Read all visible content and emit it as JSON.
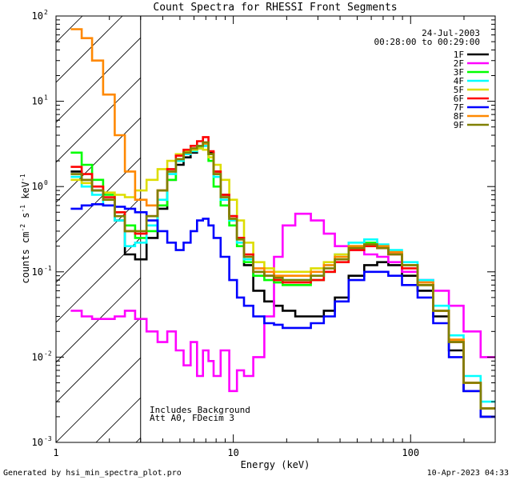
{
  "chart_data": {
    "type": "line",
    "title": "Count Spectra for RHESSI Front Segments",
    "xlabel": "Energy (keV)",
    "ylabel": "counts cm^-2 s^-1 keV^-1",
    "xscale": "log",
    "yscale": "log",
    "xlim": [
      1,
      300
    ],
    "ylim": [
      0.001,
      100
    ],
    "x_ticks": [
      {
        "value": 1,
        "label": "1"
      },
      {
        "value": 10,
        "label": "10"
      },
      {
        "value": 100,
        "label": "100"
      }
    ],
    "y_ticks": [
      {
        "value": 0.001,
        "base": "10",
        "exp": "-3"
      },
      {
        "value": 0.01,
        "base": "10",
        "exp": "-2"
      },
      {
        "value": 0.1,
        "base": "10",
        "exp": "-1"
      },
      {
        "value": 1,
        "base": "10",
        "exp": "0"
      },
      {
        "value": 10,
        "base": "10",
        "exp": "1"
      },
      {
        "value": 100,
        "base": "10",
        "exp": "2"
      }
    ],
    "shaded_region": {
      "x_from": 1,
      "x_to": 3
    },
    "date": "24-Jul-2003",
    "time_range": "00:28:00 to 00:29:00",
    "annotation_lines": [
      "Includes Background",
      "Att A0, FDecim 3"
    ],
    "series": [
      {
        "name": "1F",
        "color": "#000000",
        "x": [
          1.3,
          1.5,
          1.7,
          2.0,
          2.3,
          2.6,
          3.0,
          3.5,
          4.0,
          4.5,
          5.0,
          5.5,
          6.0,
          6.5,
          7.0,
          7.5,
          8.0,
          9.0,
          10.0,
          11.0,
          12.0,
          14.0,
          16.0,
          18.0,
          20.0,
          25.0,
          30.0,
          35.0,
          40.0,
          50.0,
          60.0,
          70.0,
          80.0,
          100.0,
          120.0,
          150.0,
          180.0,
          220.0,
          280.0
        ],
        "y": [
          1.5,
          1.2,
          0.9,
          0.7,
          0.4,
          0.16,
          0.14,
          0.25,
          0.55,
          1.2,
          1.8,
          2.2,
          2.5,
          2.8,
          3.0,
          2.5,
          1.5,
          0.8,
          0.45,
          0.25,
          0.12,
          0.06,
          0.045,
          0.04,
          0.035,
          0.03,
          0.03,
          0.035,
          0.05,
          0.09,
          0.12,
          0.13,
          0.12,
          0.09,
          0.06,
          0.03,
          0.012,
          0.004,
          0.002
        ]
      },
      {
        "name": "2F",
        "color": "#ff00ff",
        "x": [
          1.3,
          1.5,
          1.7,
          2.0,
          2.3,
          2.6,
          3.0,
          3.5,
          4.0,
          4.5,
          5.0,
          5.5,
          6.0,
          6.5,
          7.0,
          7.5,
          8.0,
          9.0,
          10.0,
          11.0,
          12.0,
          14.0,
          16.0,
          18.0,
          20.0,
          25.0,
          30.0,
          35.0,
          40.0,
          50.0,
          60.0,
          70.0,
          80.0,
          100.0,
          120.0,
          150.0,
          180.0,
          220.0,
          280.0
        ],
        "y": [
          0.035,
          0.03,
          0.028,
          0.028,
          0.03,
          0.035,
          0.028,
          0.02,
          0.015,
          0.02,
          0.012,
          0.008,
          0.015,
          0.006,
          0.012,
          0.009,
          0.006,
          0.012,
          0.004,
          0.007,
          0.006,
          0.01,
          0.03,
          0.15,
          0.35,
          0.48,
          0.4,
          0.28,
          0.2,
          0.18,
          0.16,
          0.15,
          0.13,
          0.1,
          0.08,
          0.06,
          0.04,
          0.02,
          0.01
        ]
      },
      {
        "name": "3F",
        "color": "#00ff00",
        "x": [
          1.3,
          1.5,
          1.7,
          2.0,
          2.3,
          2.6,
          3.0,
          3.5,
          4.0,
          4.5,
          5.0,
          5.5,
          6.0,
          6.5,
          7.0,
          7.5,
          8.0,
          9.0,
          10.0,
          11.0,
          12.0,
          14.0,
          16.0,
          18.0,
          20.0,
          25.0,
          30.0,
          35.0,
          40.0,
          50.0,
          60.0,
          70.0,
          80.0,
          100.0,
          120.0,
          150.0,
          180.0,
          220.0,
          280.0
        ],
        "y": [
          2.5,
          1.8,
          1.2,
          0.8,
          0.5,
          0.35,
          0.25,
          0.3,
          0.6,
          1.2,
          2.0,
          2.5,
          2.7,
          2.9,
          3.2,
          2.0,
          1.0,
          0.6,
          0.35,
          0.2,
          0.13,
          0.09,
          0.08,
          0.075,
          0.07,
          0.07,
          0.08,
          0.1,
          0.14,
          0.2,
          0.22,
          0.2,
          0.17,
          0.12,
          0.07,
          0.035,
          0.015,
          0.005,
          0.0025
        ]
      },
      {
        "name": "4F",
        "color": "#00ffff",
        "x": [
          1.3,
          1.5,
          1.7,
          2.0,
          2.3,
          2.6,
          3.0,
          3.5,
          4.0,
          4.5,
          5.0,
          5.5,
          6.0,
          6.5,
          7.0,
          7.5,
          8.0,
          9.0,
          10.0,
          11.0,
          12.0,
          14.0,
          16.0,
          18.0,
          20.0,
          25.0,
          30.0,
          35.0,
          40.0,
          50.0,
          60.0,
          70.0,
          80.0,
          100.0,
          120.0,
          150.0,
          180.0,
          220.0,
          280.0
        ],
        "y": [
          1.3,
          1.0,
          0.8,
          0.6,
          0.4,
          0.2,
          0.22,
          0.35,
          0.7,
          1.4,
          2.0,
          2.4,
          2.6,
          2.8,
          3.0,
          2.2,
          1.3,
          0.7,
          0.4,
          0.22,
          0.14,
          0.1,
          0.09,
          0.085,
          0.08,
          0.08,
          0.09,
          0.12,
          0.16,
          0.22,
          0.24,
          0.21,
          0.18,
          0.13,
          0.08,
          0.04,
          0.018,
          0.006,
          0.003
        ]
      },
      {
        "name": "5F",
        "color": "#dddd00",
        "x": [
          1.3,
          1.5,
          1.7,
          2.0,
          2.3,
          2.6,
          3.0,
          3.5,
          4.0,
          4.5,
          5.0,
          5.5,
          6.0,
          6.5,
          7.0,
          7.5,
          8.0,
          9.0,
          10.0,
          11.0,
          12.0,
          14.0,
          16.0,
          18.0,
          20.0,
          25.0,
          30.0,
          35.0,
          40.0,
          50.0,
          60.0,
          70.0,
          80.0,
          100.0,
          120.0,
          150.0,
          180.0,
          220.0,
          280.0
        ],
        "y": [
          1.2,
          1.1,
          1.0,
          0.85,
          0.8,
          0.75,
          0.9,
          1.2,
          1.6,
          2.0,
          2.4,
          2.6,
          2.7,
          2.8,
          2.7,
          2.2,
          1.8,
          1.2,
          0.7,
          0.4,
          0.22,
          0.13,
          0.11,
          0.1,
          0.1,
          0.1,
          0.11,
          0.13,
          0.16,
          0.2,
          0.21,
          0.2,
          0.17,
          0.12,
          0.075,
          0.035,
          0.016,
          0.005,
          0.0025
        ]
      },
      {
        "name": "6F",
        "color": "#ff0000",
        "x": [
          1.3,
          1.5,
          1.7,
          2.0,
          2.3,
          2.6,
          3.0,
          3.5,
          4.0,
          4.5,
          5.0,
          5.5,
          6.0,
          6.5,
          7.0,
          7.5,
          8.0,
          9.0,
          10.0,
          11.0,
          12.0,
          14.0,
          16.0,
          18.0,
          20.0,
          25.0,
          30.0,
          35.0,
          40.0,
          50.0,
          60.0,
          70.0,
          80.0,
          100.0,
          120.0,
          150.0,
          180.0,
          220.0,
          280.0
        ],
        "y": [
          1.7,
          1.4,
          1.0,
          0.75,
          0.5,
          0.3,
          0.28,
          0.45,
          0.9,
          1.6,
          2.3,
          2.7,
          3.0,
          3.4,
          3.8,
          2.6,
          1.5,
          0.8,
          0.45,
          0.25,
          0.16,
          0.1,
          0.09,
          0.08,
          0.075,
          0.075,
          0.08,
          0.1,
          0.13,
          0.18,
          0.2,
          0.19,
          0.16,
          0.11,
          0.07,
          0.035,
          0.015,
          0.005,
          0.0025
        ]
      },
      {
        "name": "7F",
        "color": "#0000ff",
        "x": [
          1.3,
          1.5,
          1.7,
          2.0,
          2.3,
          2.6,
          3.0,
          3.5,
          4.0,
          4.5,
          5.0,
          5.5,
          6.0,
          6.5,
          7.0,
          7.5,
          8.0,
          9.0,
          10.0,
          11.0,
          12.0,
          14.0,
          16.0,
          18.0,
          20.0,
          25.0,
          30.0,
          35.0,
          40.0,
          50.0,
          60.0,
          70.0,
          80.0,
          100.0,
          120.0,
          150.0,
          180.0,
          220.0,
          280.0
        ],
        "y": [
          0.55,
          0.6,
          0.62,
          0.6,
          0.58,
          0.55,
          0.5,
          0.4,
          0.3,
          0.22,
          0.18,
          0.22,
          0.3,
          0.4,
          0.42,
          0.35,
          0.25,
          0.15,
          0.08,
          0.05,
          0.04,
          0.03,
          0.025,
          0.024,
          0.022,
          0.022,
          0.025,
          0.03,
          0.045,
          0.08,
          0.1,
          0.1,
          0.09,
          0.07,
          0.05,
          0.025,
          0.01,
          0.004,
          0.002
        ]
      },
      {
        "name": "8F",
        "color": "#ff8800",
        "x": [
          1.3,
          1.5,
          1.7,
          2.0,
          2.3,
          2.6,
          3.0,
          3.5,
          4.0,
          4.5,
          5.0,
          5.5,
          6.0,
          6.5,
          7.0,
          7.5,
          8.0,
          9.0,
          10.0,
          11.0,
          12.0,
          14.0,
          16.0,
          18.0,
          20.0,
          25.0,
          30.0,
          35.0,
          40.0,
          50.0,
          60.0,
          70.0,
          80.0,
          100.0,
          120.0,
          150.0,
          180.0,
          220.0,
          280.0
        ],
        "y": [
          70,
          55,
          30,
          12,
          4,
          1.5,
          0.7,
          0.6,
          0.9,
          1.5,
          2.1,
          2.5,
          2.8,
          3.0,
          3.2,
          2.4,
          1.4,
          0.75,
          0.42,
          0.24,
          0.15,
          0.11,
          0.1,
          0.09,
          0.09,
          0.09,
          0.1,
          0.12,
          0.15,
          0.2,
          0.21,
          0.2,
          0.17,
          0.12,
          0.075,
          0.035,
          0.016,
          0.005,
          0.0025
        ]
      },
      {
        "name": "9F",
        "color": "#808000",
        "x": [
          1.3,
          1.5,
          1.7,
          2.0,
          2.3,
          2.6,
          3.0,
          3.5,
          4.0,
          4.5,
          5.0,
          5.5,
          6.0,
          6.5,
          7.0,
          7.5,
          8.0,
          9.0,
          10.0,
          11.0,
          12.0,
          14.0,
          16.0,
          18.0,
          20.0,
          25.0,
          30.0,
          35.0,
          40.0,
          50.0,
          60.0,
          70.0,
          80.0,
          100.0,
          120.0,
          150.0,
          180.0,
          220.0,
          280.0
        ],
        "y": [
          1.4,
          1.2,
          0.9,
          0.7,
          0.45,
          0.3,
          0.3,
          0.45,
          0.9,
          1.5,
          2.1,
          2.5,
          2.8,
          3.0,
          3.3,
          2.4,
          1.4,
          0.75,
          0.42,
          0.24,
          0.15,
          0.1,
          0.09,
          0.085,
          0.08,
          0.08,
          0.09,
          0.11,
          0.14,
          0.19,
          0.21,
          0.19,
          0.16,
          0.12,
          0.07,
          0.035,
          0.015,
          0.005,
          0.0025
        ]
      }
    ]
  },
  "footer": {
    "generated_by": "Generated by hsi_min_spectra_plot.pro",
    "timestamp": "10-Apr-2023 04:33"
  }
}
